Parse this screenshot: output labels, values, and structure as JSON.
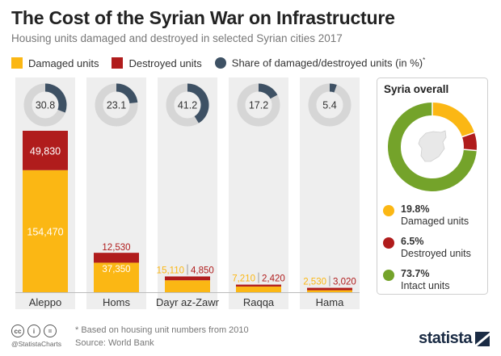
{
  "header": {
    "title": "The Cost of the Syrian War on Infrastructure",
    "subtitle": "Housing units damaged and destroyed in selected Syrian cities 2017"
  },
  "legend": {
    "damaged": "Damaged units",
    "destroyed": "Destroyed units",
    "share": "Share of damaged/destroyed units (in %)",
    "share_marker": "*"
  },
  "colors": {
    "damaged": "#fbb714",
    "destroyed": "#b01c1c",
    "share": "#3e5164",
    "intact": "#74a32a",
    "ring": "#d6d6d6",
    "column": "#eeeeee"
  },
  "chart_data": [
    {
      "type": "bar",
      "stacked": true,
      "categories": [
        "Aleppo",
        "Homs",
        "Dayr az-Zawr",
        "Raqqa",
        "Hama"
      ],
      "series": [
        {
          "name": "Damaged units",
          "values": [
            154470,
            37350,
            15110,
            7210,
            2530
          ]
        },
        {
          "name": "Destroyed units",
          "values": [
            49830,
            12530,
            4850,
            2420,
            3020
          ]
        }
      ],
      "value_labels": {
        "damaged": [
          "154,470",
          "37,350",
          "15,110",
          "7,210",
          "2,530"
        ],
        "destroyed": [
          "49,830",
          "12,530",
          "4,850",
          "2,420",
          "3,020"
        ]
      },
      "ylim": [
        0,
        204300
      ]
    },
    {
      "type": "pie",
      "name": "Share of damaged/destroyed units (in %)",
      "categories": [
        "Aleppo",
        "Homs",
        "Dayr az-Zawr",
        "Raqqa",
        "Hama"
      ],
      "values": [
        30.8,
        23.1,
        41.2,
        17.2,
        5.4
      ],
      "labels": [
        "30.8",
        "23.1",
        "41.2",
        "17.2",
        "5.4"
      ]
    },
    {
      "type": "pie",
      "title": "Syria overall",
      "slices": [
        {
          "pct": 19.8,
          "label": "19.8%",
          "name": "Damaged units",
          "key": "damaged"
        },
        {
          "pct": 6.5,
          "label": "6.5%",
          "name": "Destroyed units",
          "key": "destroyed"
        },
        {
          "pct": 73.7,
          "label": "73.7%",
          "name": "Intact units",
          "key": "intact"
        }
      ]
    }
  ],
  "footer": {
    "cc_icons": [
      "cc",
      "i",
      "="
    ],
    "handle": "@StatistaCharts",
    "note": "* Based on housing unit numbers from 2010",
    "source": "Source: World Bank",
    "brand": "statista"
  }
}
